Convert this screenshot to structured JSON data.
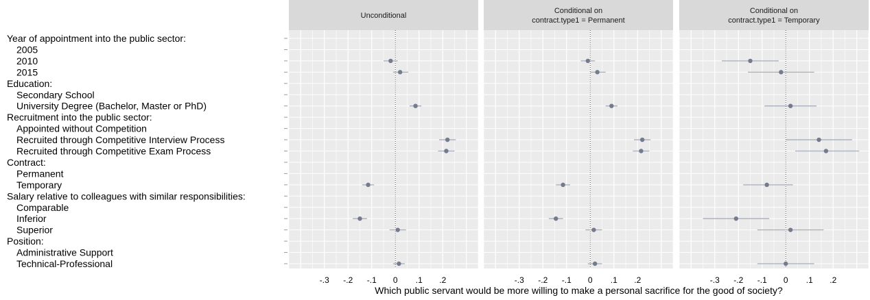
{
  "chart_data": {
    "type": "scatter",
    "style": "coefficient plot with 95% confidence intervals, three facet panels",
    "xlabel": "Which public servant would be more willing to make a personal sacrifice for the good of society?",
    "xlim": [
      -0.45,
      0.35
    ],
    "xticks": [
      -0.3,
      -0.2,
      -0.1,
      0,
      0.1,
      0.2
    ],
    "xtick_labels": [
      "-.3",
      "-.2",
      "-.1",
      "0",
      ".1",
      ".2"
    ],
    "reference_line": 0,
    "grid": true,
    "colors": {
      "panel_bg": "#ebebeb",
      "strip_bg": "#d9d9d9",
      "grid": "#ffffff",
      "point": "#737b8c",
      "ci": "#a8aebb"
    },
    "rows": [
      {
        "label": "Year of appointment into the public sector:",
        "header": true
      },
      {
        "label": "2005"
      },
      {
        "label": "2010"
      },
      {
        "label": "2015"
      },
      {
        "label": "Education:",
        "header": true
      },
      {
        "label": "Secondary School"
      },
      {
        "label": "University Degree (Bachelor, Master or PhD)"
      },
      {
        "label": "Recruitment into the public sector:",
        "header": true
      },
      {
        "label": "Appointed without Competition"
      },
      {
        "label": "Recruited through Competitive  Interview Process"
      },
      {
        "label": "Recruited through Competitive Exam Process"
      },
      {
        "label": "Contract:",
        "header": true
      },
      {
        "label": "Permanent"
      },
      {
        "label": "Temporary"
      },
      {
        "label": "Salary relative to colleagues with similar responsibilities:",
        "header": true
      },
      {
        "label": "Comparable"
      },
      {
        "label": "Inferior"
      },
      {
        "label": "Superior"
      },
      {
        "label": "Position:",
        "header": true
      },
      {
        "label": "Administrative Support"
      },
      {
        "label": "Technical-Professional"
      }
    ],
    "panels": [
      {
        "title": "Unconditional",
        "estimates": [
          {
            "row": 2,
            "value": -0.02,
            "ci": [
              -0.05,
              0.01
            ]
          },
          {
            "row": 3,
            "value": 0.02,
            "ci": [
              -0.01,
              0.055
            ]
          },
          {
            "row": 6,
            "value": 0.085,
            "ci": [
              0.06,
              0.11
            ]
          },
          {
            "row": 9,
            "value": 0.22,
            "ci": [
              0.185,
              0.255
            ]
          },
          {
            "row": 10,
            "value": 0.215,
            "ci": [
              0.18,
              0.25
            ]
          },
          {
            "row": 13,
            "value": -0.115,
            "ci": [
              -0.14,
              -0.09
            ]
          },
          {
            "row": 16,
            "value": -0.15,
            "ci": [
              -0.18,
              -0.12
            ]
          },
          {
            "row": 17,
            "value": 0.01,
            "ci": [
              -0.025,
              0.045
            ]
          },
          {
            "row": 20,
            "value": 0.015,
            "ci": [
              -0.01,
              0.04
            ]
          }
        ]
      },
      {
        "title": "Conditional on\ncontract.type1 = Permanent",
        "estimates": [
          {
            "row": 2,
            "value": -0.01,
            "ci": [
              -0.04,
              0.02
            ]
          },
          {
            "row": 3,
            "value": 0.03,
            "ci": [
              0.0,
              0.065
            ]
          },
          {
            "row": 6,
            "value": 0.09,
            "ci": [
              0.065,
              0.115
            ]
          },
          {
            "row": 9,
            "value": 0.22,
            "ci": [
              0.185,
              0.255
            ]
          },
          {
            "row": 10,
            "value": 0.215,
            "ci": [
              0.18,
              0.25
            ]
          },
          {
            "row": 13,
            "value": -0.115,
            "ci": [
              -0.145,
              -0.085
            ]
          },
          {
            "row": 16,
            "value": -0.145,
            "ci": [
              -0.175,
              -0.115
            ]
          },
          {
            "row": 17,
            "value": 0.015,
            "ci": [
              -0.02,
              0.05
            ]
          },
          {
            "row": 20,
            "value": 0.02,
            "ci": [
              -0.01,
              0.05
            ]
          }
        ]
      },
      {
        "title": "Conditional on\ncontract.type1 = Temporary",
        "estimates": [
          {
            "row": 2,
            "value": -0.15,
            "ci": [
              -0.27,
              -0.03
            ]
          },
          {
            "row": 3,
            "value": -0.02,
            "ci": [
              -0.16,
              0.12
            ]
          },
          {
            "row": 6,
            "value": 0.02,
            "ci": [
              -0.09,
              0.13
            ]
          },
          {
            "row": 9,
            "value": 0.14,
            "ci": [
              0.0,
              0.28
            ]
          },
          {
            "row": 10,
            "value": 0.17,
            "ci": [
              0.04,
              0.31
            ]
          },
          {
            "row": 13,
            "value": -0.08,
            "ci": [
              -0.18,
              0.03
            ]
          },
          {
            "row": 16,
            "value": -0.21,
            "ci": [
              -0.35,
              -0.07
            ]
          },
          {
            "row": 17,
            "value": 0.02,
            "ci": [
              -0.12,
              0.16
            ]
          },
          {
            "row": 20,
            "value": 0.0,
            "ci": [
              -0.12,
              0.12
            ]
          }
        ]
      }
    ]
  }
}
